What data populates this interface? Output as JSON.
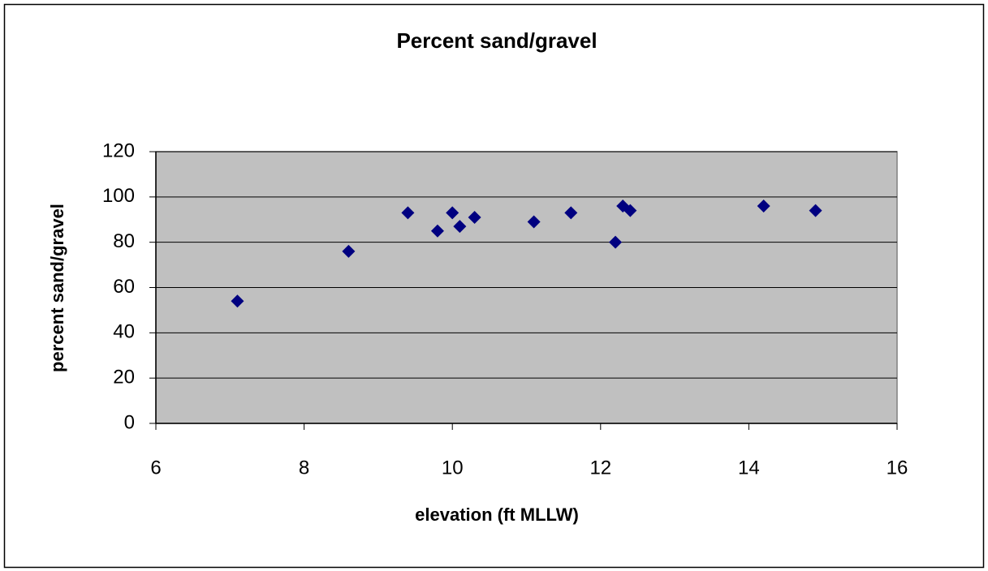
{
  "chart_data": {
    "type": "scatter",
    "title": "Percent sand/gravel",
    "x_label": "elevation (ft MLLW)",
    "y_label": "percent sand/gravel",
    "series": [
      {
        "name": "percent sand/gravel",
        "color": "#000080",
        "x": [
          7.1,
          8.6,
          9.4,
          9.8,
          10.0,
          10.1,
          10.3,
          11.1,
          11.6,
          12.2,
          12.3,
          12.4,
          14.2,
          14.9
        ],
        "values": [
          54,
          76,
          93,
          85,
          93,
          87,
          91,
          89,
          93,
          80,
          96,
          94,
          96,
          94
        ]
      }
    ],
    "xlim": [
      6,
      16
    ],
    "xticks": [
      6,
      8,
      10,
      12,
      14,
      16
    ],
    "ylim": [
      0,
      120
    ],
    "yticks": [
      0,
      20,
      40,
      60,
      80,
      100,
      120
    ],
    "grid": true,
    "plot_background": "#c0c0c0"
  }
}
